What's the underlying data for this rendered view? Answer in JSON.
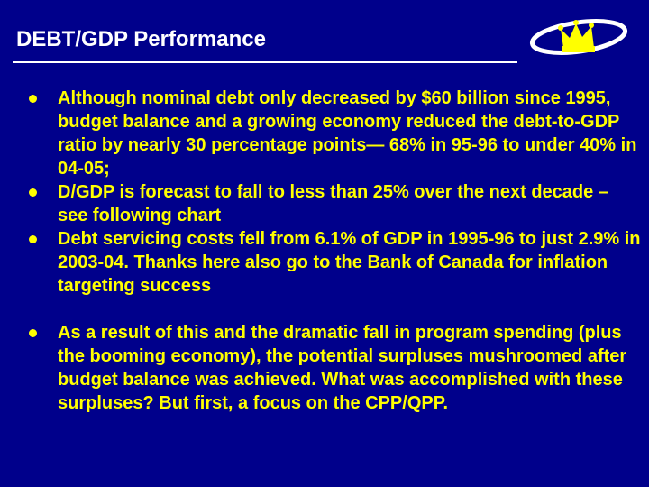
{
  "slide": {
    "title": "DEBT/GDP Performance",
    "bullets": [
      "Although nominal debt only decreased by $60 billion since 1995, budget balance and a growing economy reduced the debt-to-GDP ratio by nearly 30 percentage points— 68% in 95-96 to under 40% in 04-05;",
      "D/GDP is forecast to fall to less than 25% over the next decade – see following chart",
      "Debt servicing costs fell from 6.1% of GDP in 1995-96 to just 2.9% in 2003-04. Thanks here also go to the Bank of Canada for inflation targeting success",
      "As a result of this and the dramatic fall in program spending (plus the booming economy), the potential surpluses mushroomed after budget balance was achieved. What was accomplished with these surpluses? But first, a focus on the CPP/QPP."
    ]
  },
  "colors": {
    "background": "#00008b",
    "title_text": "#ffffff",
    "body_text": "#ffff00"
  },
  "icons": {
    "logo": "crown-logo-icon",
    "bullet": "bullet-dot-icon"
  }
}
